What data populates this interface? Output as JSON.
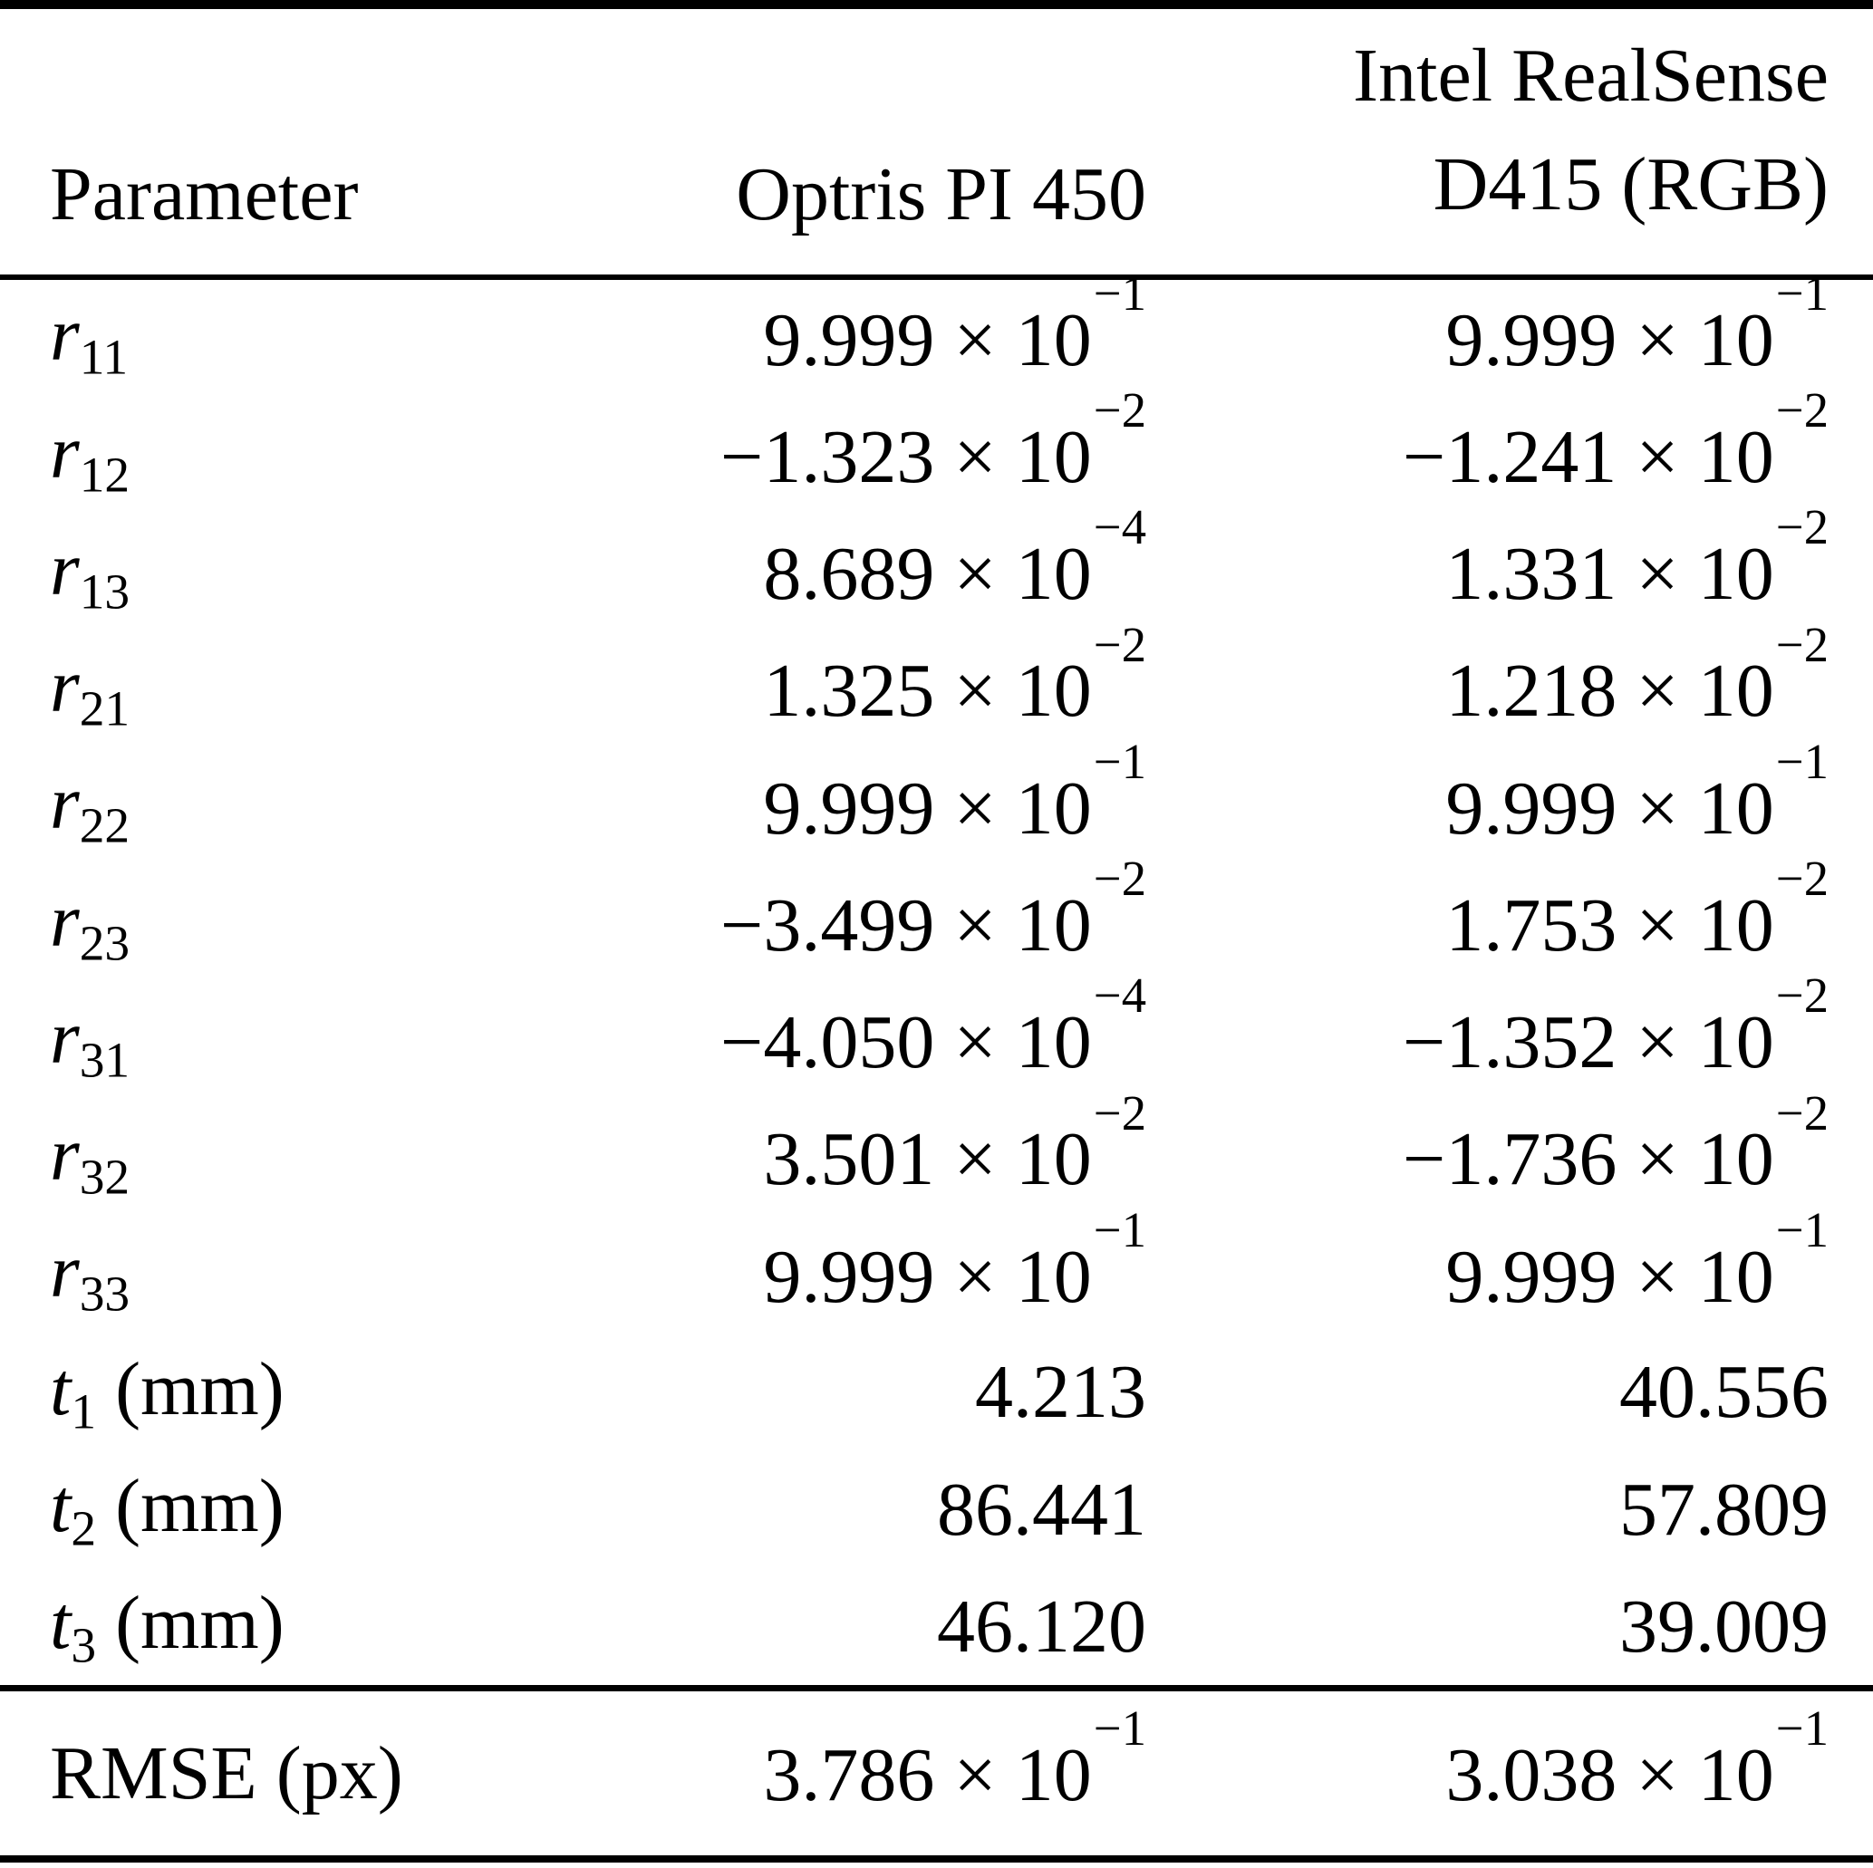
{
  "header": {
    "param_col": "Parameter",
    "optris_col": "Optris PI 450",
    "realsense_col_line1": "Intel RealSense",
    "realsense_col_line2": "D415 (RGB)"
  },
  "rows": [
    {
      "name": "r",
      "sub": "11",
      "suffix": "",
      "italic": true,
      "optris": {
        "m": "9.999 × 10",
        "e": "−1"
      },
      "realsense": {
        "m": "9.999 × 10",
        "e": "−1"
      }
    },
    {
      "name": "r",
      "sub": "12",
      "suffix": "",
      "italic": true,
      "optris": {
        "m": "−1.323 × 10",
        "e": "−2"
      },
      "realsense": {
        "m": "−1.241 × 10",
        "e": "−2"
      }
    },
    {
      "name": "r",
      "sub": "13",
      "suffix": "",
      "italic": true,
      "optris": {
        "m": "8.689 × 10",
        "e": "−4"
      },
      "realsense": {
        "m": "1.331 × 10",
        "e": "−2"
      }
    },
    {
      "name": "r",
      "sub": "21",
      "suffix": "",
      "italic": true,
      "optris": {
        "m": "1.325 × 10",
        "e": "−2"
      },
      "realsense": {
        "m": "1.218 × 10",
        "e": "−2"
      }
    },
    {
      "name": "r",
      "sub": "22",
      "suffix": "",
      "italic": true,
      "optris": {
        "m": "9.999 × 10",
        "e": "−1"
      },
      "realsense": {
        "m": "9.999 × 10",
        "e": "−1"
      }
    },
    {
      "name": "r",
      "sub": "23",
      "suffix": "",
      "italic": true,
      "optris": {
        "m": "−3.499 × 10",
        "e": "−2"
      },
      "realsense": {
        "m": "1.753 × 10",
        "e": "−2"
      }
    },
    {
      "name": "r",
      "sub": "31",
      "suffix": "",
      "italic": true,
      "optris": {
        "m": "−4.050 × 10",
        "e": "−4"
      },
      "realsense": {
        "m": "−1.352 × 10",
        "e": "−2"
      }
    },
    {
      "name": "r",
      "sub": "32",
      "suffix": "",
      "italic": true,
      "optris": {
        "m": "3.501 × 10",
        "e": "−2"
      },
      "realsense": {
        "m": "−1.736 × 10",
        "e": "−2"
      }
    },
    {
      "name": "r",
      "sub": "33",
      "suffix": "",
      "italic": true,
      "optris": {
        "m": "9.999 × 10",
        "e": "−1"
      },
      "realsense": {
        "m": "9.999 × 10",
        "e": "−1"
      }
    },
    {
      "name": "t",
      "sub": "1",
      "suffix": " (mm)",
      "italic": true,
      "optris": {
        "m": "4.213",
        "e": ""
      },
      "realsense": {
        "m": "40.556",
        "e": ""
      }
    },
    {
      "name": "t",
      "sub": "2",
      "suffix": " (mm)",
      "italic": true,
      "optris": {
        "m": "86.441",
        "e": ""
      },
      "realsense": {
        "m": "57.809",
        "e": ""
      }
    },
    {
      "name": "t",
      "sub": "3",
      "suffix": " (mm)",
      "italic": true,
      "optris": {
        "m": "46.120",
        "e": ""
      },
      "realsense": {
        "m": "39.009",
        "e": ""
      }
    }
  ],
  "footer_row": {
    "name": "RMSE (px)",
    "sub": "",
    "suffix": "",
    "italic": false,
    "optris": {
      "m": "3.786 × 10",
      "e": "−1"
    },
    "realsense": {
      "m": "3.038 × 10",
      "e": "−1"
    }
  },
  "colors": {
    "text": "#000000",
    "background": "#ffffff",
    "rule": "#000000"
  }
}
